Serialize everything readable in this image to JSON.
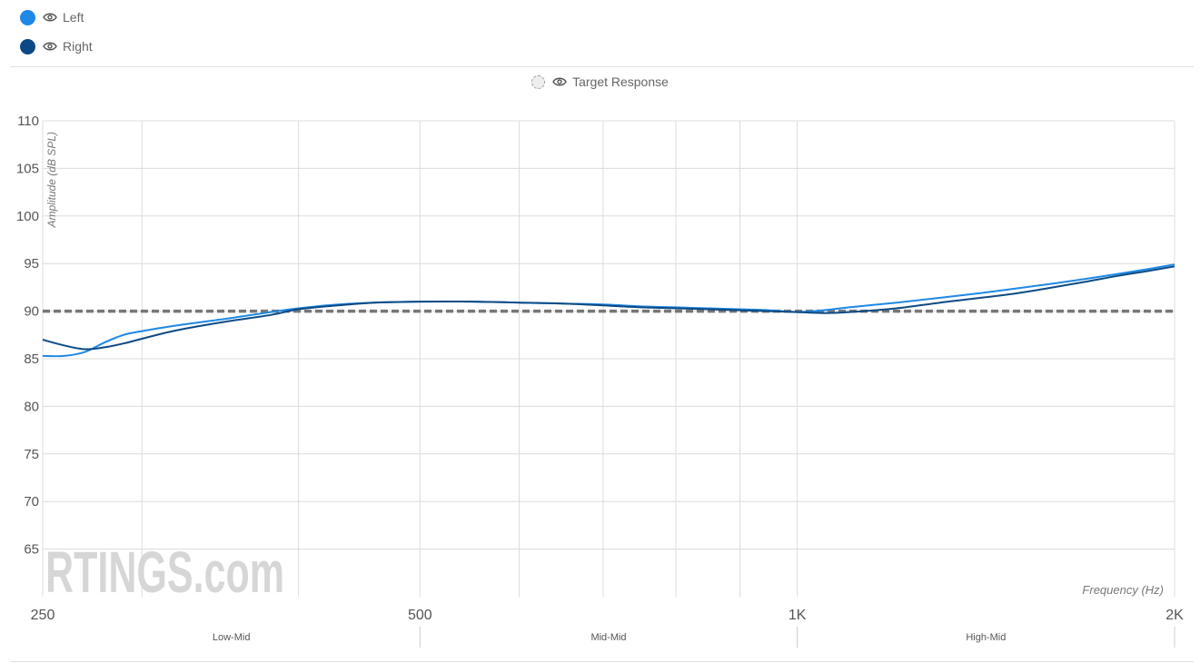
{
  "legend": {
    "items": [
      {
        "label": "Left",
        "color": "#1E88E5",
        "icon": "eye-icon"
      },
      {
        "label": "Right",
        "color": "#0D4A85",
        "icon": "eye-icon"
      }
    ],
    "target": {
      "label": "Target Response",
      "icon": "eye-icon"
    }
  },
  "watermark": "RTINGS.com",
  "chart_data": {
    "type": "line",
    "title": "",
    "xlabel": "Frequency (Hz)",
    "ylabel": "Amplitude (dB SPL)",
    "xscale": "log",
    "xlim": [
      250,
      2000
    ],
    "ylim": [
      60,
      110
    ],
    "grid": true,
    "x_ticks": [
      {
        "value": 250,
        "label": "250"
      },
      {
        "value": 500,
        "label": "500"
      },
      {
        "value": 1000,
        "label": "1K"
      },
      {
        "value": 2000,
        "label": "2K"
      }
    ],
    "x_minor_gridlines": [
      300,
      400,
      600,
      700,
      800,
      900
    ],
    "y_ticks": [
      65,
      70,
      75,
      80,
      85,
      90,
      95,
      100,
      105,
      110
    ],
    "bands": [
      {
        "label": "Low-Mid",
        "range": [
          250,
          500
        ]
      },
      {
        "label": "Mid-Mid",
        "range": [
          500,
          1000
        ]
      },
      {
        "label": "High-Mid",
        "range": [
          1000,
          2000
        ]
      }
    ],
    "series": [
      {
        "name": "Left",
        "color": "#1E88E5",
        "points": [
          [
            250,
            85.3
          ],
          [
            260,
            85.3
          ],
          [
            270,
            85.7
          ],
          [
            280,
            86.7
          ],
          [
            290,
            87.5
          ],
          [
            300,
            87.9
          ],
          [
            320,
            88.5
          ],
          [
            350,
            89.2
          ],
          [
            380,
            89.9
          ],
          [
            400,
            90.3
          ],
          [
            430,
            90.7
          ],
          [
            460,
            90.9
          ],
          [
            500,
            91.0
          ],
          [
            550,
            91.0
          ],
          [
            600,
            90.9
          ],
          [
            650,
            90.8
          ],
          [
            700,
            90.7
          ],
          [
            750,
            90.5
          ],
          [
            800,
            90.4
          ],
          [
            850,
            90.3
          ],
          [
            900,
            90.2
          ],
          [
            950,
            90.1
          ],
          [
            1000,
            89.9
          ],
          [
            1050,
            90.1
          ],
          [
            1100,
            90.4
          ],
          [
            1200,
            90.9
          ],
          [
            1300,
            91.4
          ],
          [
            1400,
            91.9
          ],
          [
            1500,
            92.4
          ],
          [
            1600,
            92.9
          ],
          [
            1700,
            93.4
          ],
          [
            1800,
            93.9
          ],
          [
            1900,
            94.4
          ],
          [
            2000,
            94.9
          ]
        ]
      },
      {
        "name": "Right",
        "color": "#0D4A85",
        "points": [
          [
            250,
            87.0
          ],
          [
            260,
            86.4
          ],
          [
            270,
            86.0
          ],
          [
            280,
            86.2
          ],
          [
            290,
            86.6
          ],
          [
            300,
            87.1
          ],
          [
            320,
            88.0
          ],
          [
            350,
            88.9
          ],
          [
            380,
            89.6
          ],
          [
            400,
            90.2
          ],
          [
            430,
            90.6
          ],
          [
            460,
            90.9
          ],
          [
            500,
            91.0
          ],
          [
            550,
            91.0
          ],
          [
            600,
            90.9
          ],
          [
            650,
            90.8
          ],
          [
            700,
            90.6
          ],
          [
            750,
            90.4
          ],
          [
            800,
            90.3
          ],
          [
            850,
            90.2
          ],
          [
            900,
            90.1
          ],
          [
            950,
            90.0
          ],
          [
            1000,
            89.9
          ],
          [
            1050,
            89.8
          ],
          [
            1100,
            89.9
          ],
          [
            1200,
            90.3
          ],
          [
            1300,
            90.9
          ],
          [
            1400,
            91.4
          ],
          [
            1500,
            91.9
          ],
          [
            1600,
            92.5
          ],
          [
            1700,
            93.1
          ],
          [
            1800,
            93.7
          ],
          [
            1900,
            94.2
          ],
          [
            2000,
            94.7
          ]
        ]
      },
      {
        "name": "Target Response",
        "color": "#777777",
        "dashed": true,
        "points": [
          [
            250,
            90
          ],
          [
            2000,
            90
          ]
        ]
      }
    ]
  }
}
